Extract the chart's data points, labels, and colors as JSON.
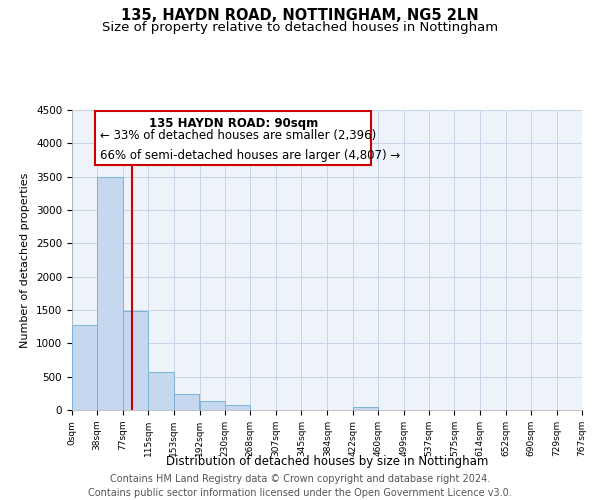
{
  "title": "135, HAYDN ROAD, NOTTINGHAM, NG5 2LN",
  "subtitle": "Size of property relative to detached houses in Nottingham",
  "xlabel": "Distribution of detached houses by size in Nottingham",
  "ylabel": "Number of detached properties",
  "bar_left_edges": [
    0,
    38,
    77,
    115,
    153,
    192,
    230,
    268,
    307,
    345,
    384,
    422,
    460,
    499,
    537,
    575,
    614,
    652,
    690,
    729
  ],
  "bar_heights": [
    1280,
    3500,
    1480,
    575,
    245,
    140,
    75,
    0,
    0,
    0,
    0,
    50,
    0,
    0,
    0,
    0,
    0,
    0,
    0,
    0
  ],
  "bin_width": 38,
  "bar_color": "#c5d8f0",
  "bar_edge_color": "#7ab4d8",
  "tick_labels": [
    "0sqm",
    "38sqm",
    "77sqm",
    "115sqm",
    "153sqm",
    "192sqm",
    "230sqm",
    "268sqm",
    "307sqm",
    "345sqm",
    "384sqm",
    "422sqm",
    "460sqm",
    "499sqm",
    "537sqm",
    "575sqm",
    "614sqm",
    "652sqm",
    "690sqm",
    "729sqm",
    "767sqm"
  ],
  "ylim": [
    0,
    4500
  ],
  "yticks": [
    0,
    500,
    1000,
    1500,
    2000,
    2500,
    3000,
    3500,
    4000,
    4500
  ],
  "property_line_x": 90,
  "property_line_color": "#cc0000",
  "annotation_line1": "135 HAYDN ROAD: 90sqm",
  "annotation_line2": "← 33% of detached houses are smaller (2,396)",
  "annotation_line3": "66% of semi-detached houses are larger (4,807) →",
  "footer_line1": "Contains HM Land Registry data © Crown copyright and database right 2024.",
  "footer_line2": "Contains public sector information licensed under the Open Government Licence v3.0.",
  "background_color": "#eef2f9",
  "grid_color": "#c8d4e8",
  "title_fontsize": 10.5,
  "subtitle_fontsize": 9.5,
  "annotation_fontsize": 8.5,
  "footer_fontsize": 7
}
